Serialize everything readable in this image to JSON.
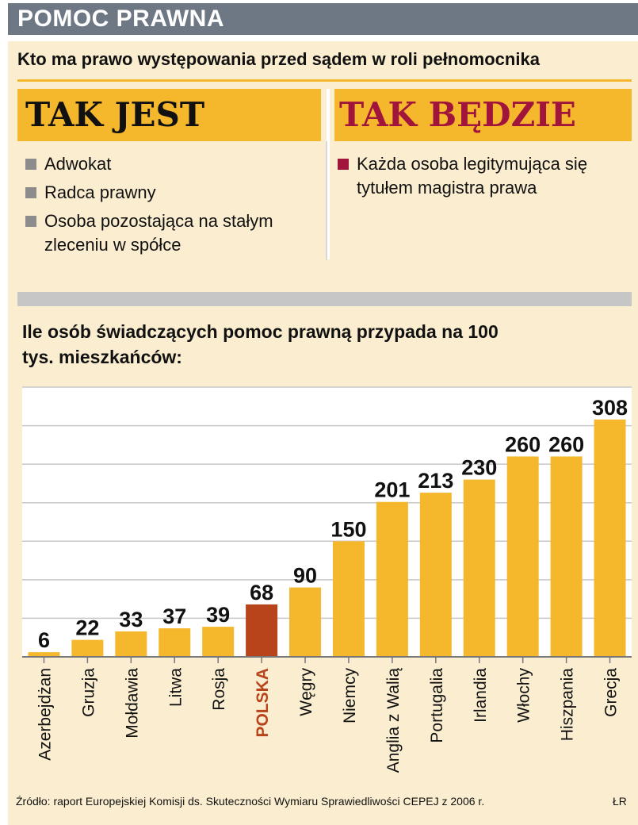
{
  "header": {
    "title": "POMOC PRAWNA"
  },
  "question": "Kto ma prawo występowania przed sądem w roli pełnomocnika",
  "columns": {
    "now": {
      "title": "TAK JEST",
      "items": [
        "Adwokat",
        "Radca prawny",
        "Osoba pozostająca na stałym zleceniu w spółce"
      ]
    },
    "future": {
      "title": "TAK BĘDZIE",
      "items": [
        "Każda osoba legitymująca się tytułem magistra prawa"
      ]
    }
  },
  "colors": {
    "bar": "#f5b72b",
    "highlight_bar": "#b8441b",
    "highlight_label": "#b8441b",
    "accent_red": "#a1153c"
  },
  "chart_data": {
    "type": "bar",
    "title": "Ile osób świadczących pomoc prawną przypada na 100 tys. mieszkańców:",
    "categories": [
      "Azerbejdżan",
      "Gruzja",
      "Mołdawia",
      "Litwa",
      "Rosja",
      "POLSKA",
      "Węgry",
      "Niemcy",
      "Anglia z Walią",
      "Portugalia",
      "Irlandia",
      "Włochy",
      "Hiszpania",
      "Grecja"
    ],
    "values": [
      6,
      22,
      33,
      37,
      39,
      68,
      90,
      150,
      201,
      213,
      230,
      260,
      260,
      308
    ],
    "highlight": "POLSKA",
    "ylim": [
      0,
      350
    ],
    "gridlines": [
      50,
      100,
      150,
      200,
      250,
      300,
      350
    ],
    "xlabel": "",
    "ylabel": ""
  },
  "footer": {
    "source": "Źródło: raport Europejskiej Komisji ds. Skuteczności Wymiaru Sprawiedliwości CEPEJ z 2006 r.",
    "credit": "ŁR"
  }
}
